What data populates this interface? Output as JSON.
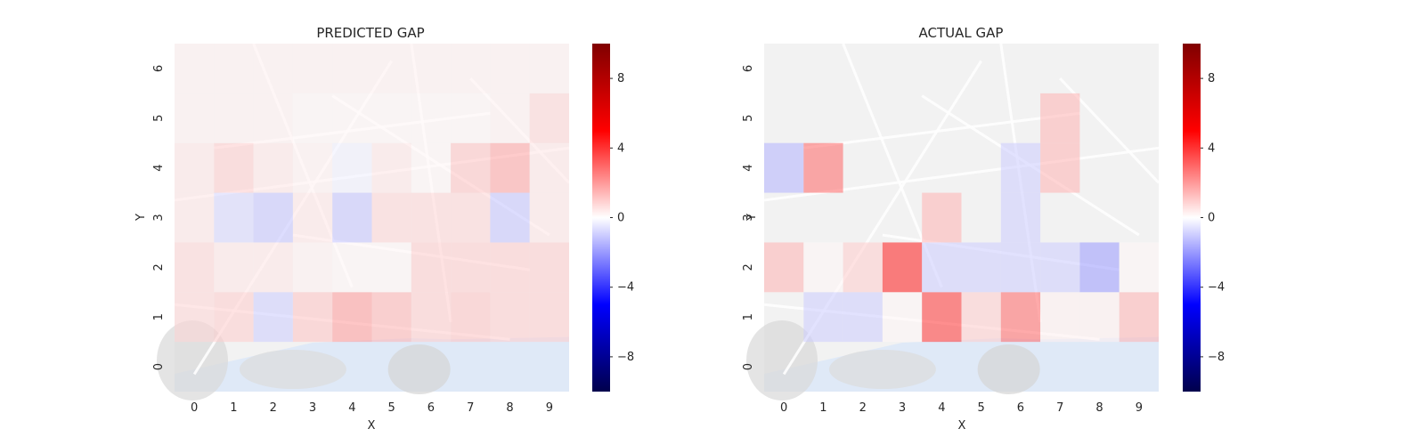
{
  "chart_data": [
    {
      "type": "heatmap",
      "title": "PREDICTED GAP",
      "xlabel": "X",
      "ylabel": "Y",
      "x_categories": [
        "0",
        "1",
        "2",
        "3",
        "4",
        "5",
        "6",
        "7",
        "8",
        "9"
      ],
      "y_categories": [
        "0",
        "1",
        "2",
        "3",
        "4",
        "5",
        "6"
      ],
      "background": "map",
      "values": [
        [
          null,
          null,
          null,
          null,
          null,
          null,
          null,
          null,
          null,
          null
        ],
        [
          0.8,
          1.0,
          -1.0,
          1.2,
          2.0,
          1.5,
          1.0,
          1.2,
          1.0,
          1.0
        ],
        [
          0.8,
          0.5,
          0.5,
          0.3,
          0.2,
          0.2,
          1.0,
          1.0,
          1.0,
          1.0
        ],
        [
          0.5,
          -0.8,
          -1.2,
          0.5,
          -1.2,
          0.8,
          0.8,
          0.8,
          -1.2,
          0.5
        ],
        [
          0.5,
          1.0,
          0.5,
          0.3,
          -0.3,
          0.5,
          0.2,
          1.2,
          1.8,
          0.5
        ],
        [
          0.3,
          0.3,
          0.3,
          0.2,
          0.2,
          0.2,
          0.2,
          0.2,
          0.3,
          0.8
        ],
        [
          0.3,
          0.3,
          0.3,
          0.3,
          0.3,
          0.3,
          0.3,
          0.3,
          0.3,
          0.3
        ]
      ],
      "colorbar": {
        "ticks": [
          8,
          4,
          0,
          -4,
          -8
        ],
        "range": [
          -10,
          10
        ],
        "colormap": "seismic"
      }
    },
    {
      "type": "heatmap",
      "title": "ACTUAL GAP",
      "xlabel": "X",
      "ylabel": "Y",
      "x_categories": [
        "0",
        "1",
        "2",
        "3",
        "4",
        "5",
        "6",
        "7",
        "8",
        "9"
      ],
      "y_categories": [
        "0",
        "1",
        "2",
        "3",
        "4",
        "5",
        "6"
      ],
      "background": "map",
      "values": [
        [
          null,
          null,
          null,
          null,
          null,
          null,
          null,
          null,
          null,
          null
        ],
        [
          null,
          -1.0,
          -1.0,
          0.2,
          4.0,
          1.0,
          3.0,
          0.3,
          0.3,
          1.5
        ],
        [
          1.5,
          0.2,
          1.0,
          4.5,
          -1.0,
          -1.0,
          -1.0,
          -1.0,
          -2.0,
          0.2
        ],
        [
          null,
          null,
          null,
          null,
          1.5,
          null,
          -1.0,
          null,
          null,
          null
        ],
        [
          -1.5,
          3.0,
          null,
          null,
          null,
          null,
          -1.0,
          1.5,
          null,
          null
        ],
        [
          null,
          null,
          null,
          null,
          null,
          null,
          null,
          1.5,
          null,
          null
        ],
        [
          null,
          null,
          null,
          null,
          null,
          null,
          null,
          null,
          null,
          null
        ]
      ],
      "colorbar": {
        "ticks": [
          8,
          4,
          0,
          -4,
          -8
        ],
        "range": [
          -10,
          10
        ],
        "colormap": "seismic"
      }
    }
  ]
}
